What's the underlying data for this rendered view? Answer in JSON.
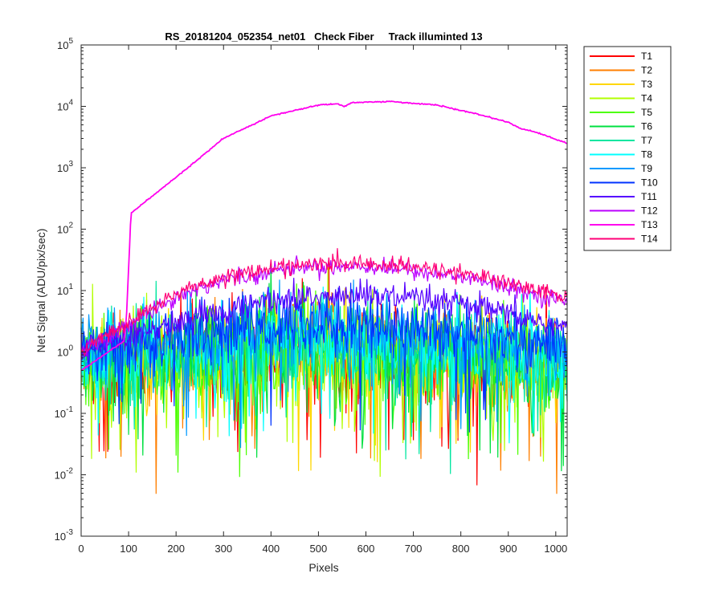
{
  "chart_data": {
    "type": "line",
    "title": "RS_20181204_052354_net01   Check Fiber     Track illuminted 13",
    "xlabel": "Pixels",
    "ylabel": "Net Signal (ADU/pix/sec)",
    "xlim": [
      0,
      1024
    ],
    "ylim": [
      0.001,
      100000
    ],
    "yscale": "log",
    "grid": false,
    "legend_position": "outside-top-right",
    "x_ticks": [
      0,
      100,
      200,
      300,
      400,
      500,
      600,
      700,
      800,
      900,
      1000
    ],
    "y_tick_exponents": [
      -3,
      -2,
      -1,
      0,
      1,
      2,
      3,
      4,
      5
    ],
    "y_tick_base": "10",
    "series": [
      {
        "name": "T1",
        "color": "#ff0000",
        "level": [
          [
            0,
            0.6
          ],
          [
            200,
            0.8
          ],
          [
            500,
            1.0
          ],
          [
            800,
            0.8
          ],
          [
            1024,
            0.5
          ]
        ],
        "noise": 0.9
      },
      {
        "name": "T2",
        "color": "#ff7f00",
        "level": [
          [
            0,
            0.6
          ],
          [
            200,
            0.8
          ],
          [
            500,
            1.0
          ],
          [
            800,
            0.8
          ],
          [
            1024,
            0.5
          ]
        ],
        "noise": 0.9
      },
      {
        "name": "T3",
        "color": "#ffd700",
        "level": [
          [
            0,
            0.6
          ],
          [
            200,
            0.8
          ],
          [
            500,
            1.0
          ],
          [
            800,
            0.8
          ],
          [
            1024,
            0.5
          ]
        ],
        "noise": 0.9
      },
      {
        "name": "T4",
        "color": "#b2ff00",
        "level": [
          [
            0,
            0.6
          ],
          [
            200,
            0.8
          ],
          [
            500,
            1.0
          ],
          [
            800,
            0.8
          ],
          [
            1024,
            0.5
          ]
        ],
        "noise": 0.9
      },
      {
        "name": "T5",
        "color": "#4cff00",
        "level": [
          [
            0,
            0.7
          ],
          [
            200,
            0.9
          ],
          [
            500,
            1.1
          ],
          [
            800,
            0.9
          ],
          [
            1024,
            0.6
          ]
        ],
        "noise": 0.85
      },
      {
        "name": "T6",
        "color": "#00e040",
        "level": [
          [
            0,
            0.7
          ],
          [
            200,
            0.9
          ],
          [
            500,
            1.1
          ],
          [
            800,
            0.9
          ],
          [
            1024,
            0.6
          ]
        ],
        "noise": 0.85
      },
      {
        "name": "T7",
        "color": "#00e6a0",
        "level": [
          [
            0,
            0.7
          ],
          [
            200,
            1.0
          ],
          [
            500,
            1.3
          ],
          [
            800,
            1.0
          ],
          [
            1024,
            0.7
          ]
        ],
        "noise": 0.8
      },
      {
        "name": "T8",
        "color": "#00ffff",
        "level": [
          [
            0,
            0.8
          ],
          [
            200,
            1.2
          ],
          [
            500,
            1.8
          ],
          [
            800,
            1.3
          ],
          [
            1024,
            0.8
          ]
        ],
        "noise": 0.7
      },
      {
        "name": "T9",
        "color": "#0099ff",
        "level": [
          [
            0,
            0.9
          ],
          [
            200,
            1.4
          ],
          [
            500,
            2.2
          ],
          [
            800,
            1.5
          ],
          [
            1024,
            0.9
          ]
        ],
        "noise": 0.7
      },
      {
        "name": "T10",
        "color": "#0033ff",
        "level": [
          [
            0,
            1.0
          ],
          [
            200,
            1.8
          ],
          [
            500,
            3.2
          ],
          [
            800,
            2.2
          ],
          [
            1024,
            1.2
          ]
        ],
        "noise": 0.55
      },
      {
        "name": "T11",
        "color": "#5500ff",
        "level": [
          [
            0,
            1.0
          ],
          [
            200,
            3.0
          ],
          [
            400,
            7.0
          ],
          [
            600,
            8.5
          ],
          [
            800,
            6.0
          ],
          [
            1024,
            2.5
          ]
        ],
        "noise": 0.25
      },
      {
        "name": "T12",
        "color": "#bb00ff",
        "level": [
          [
            0,
            1.0
          ],
          [
            200,
            8.0
          ],
          [
            300,
            15
          ],
          [
            450,
            24
          ],
          [
            600,
            25
          ],
          [
            800,
            17
          ],
          [
            1024,
            6.5
          ]
        ],
        "noise": 0.15
      },
      {
        "name": "T13",
        "color": "#ff00ee",
        "level": [
          [
            0,
            0.5
          ],
          [
            90,
            1.5
          ],
          [
            95,
            3
          ],
          [
            105,
            180
          ],
          [
            115,
            210
          ],
          [
            200,
            700
          ],
          [
            300,
            3000
          ],
          [
            400,
            7000
          ],
          [
            500,
            10500
          ],
          [
            540,
            11000
          ],
          [
            555,
            10000
          ],
          [
            570,
            11500
          ],
          [
            650,
            12000
          ],
          [
            750,
            10500
          ],
          [
            850,
            7000
          ],
          [
            900,
            5500
          ],
          [
            930,
            4200
          ],
          [
            950,
            4000
          ],
          [
            1024,
            2500
          ]
        ],
        "noise": 0.01
      },
      {
        "name": "T14",
        "color": "#ff0077",
        "level": [
          [
            0,
            1.0
          ],
          [
            200,
            9.0
          ],
          [
            300,
            17
          ],
          [
            450,
            26
          ],
          [
            600,
            28
          ],
          [
            800,
            20
          ],
          [
            1024,
            8.0
          ]
        ],
        "noise": 0.15
      }
    ]
  }
}
